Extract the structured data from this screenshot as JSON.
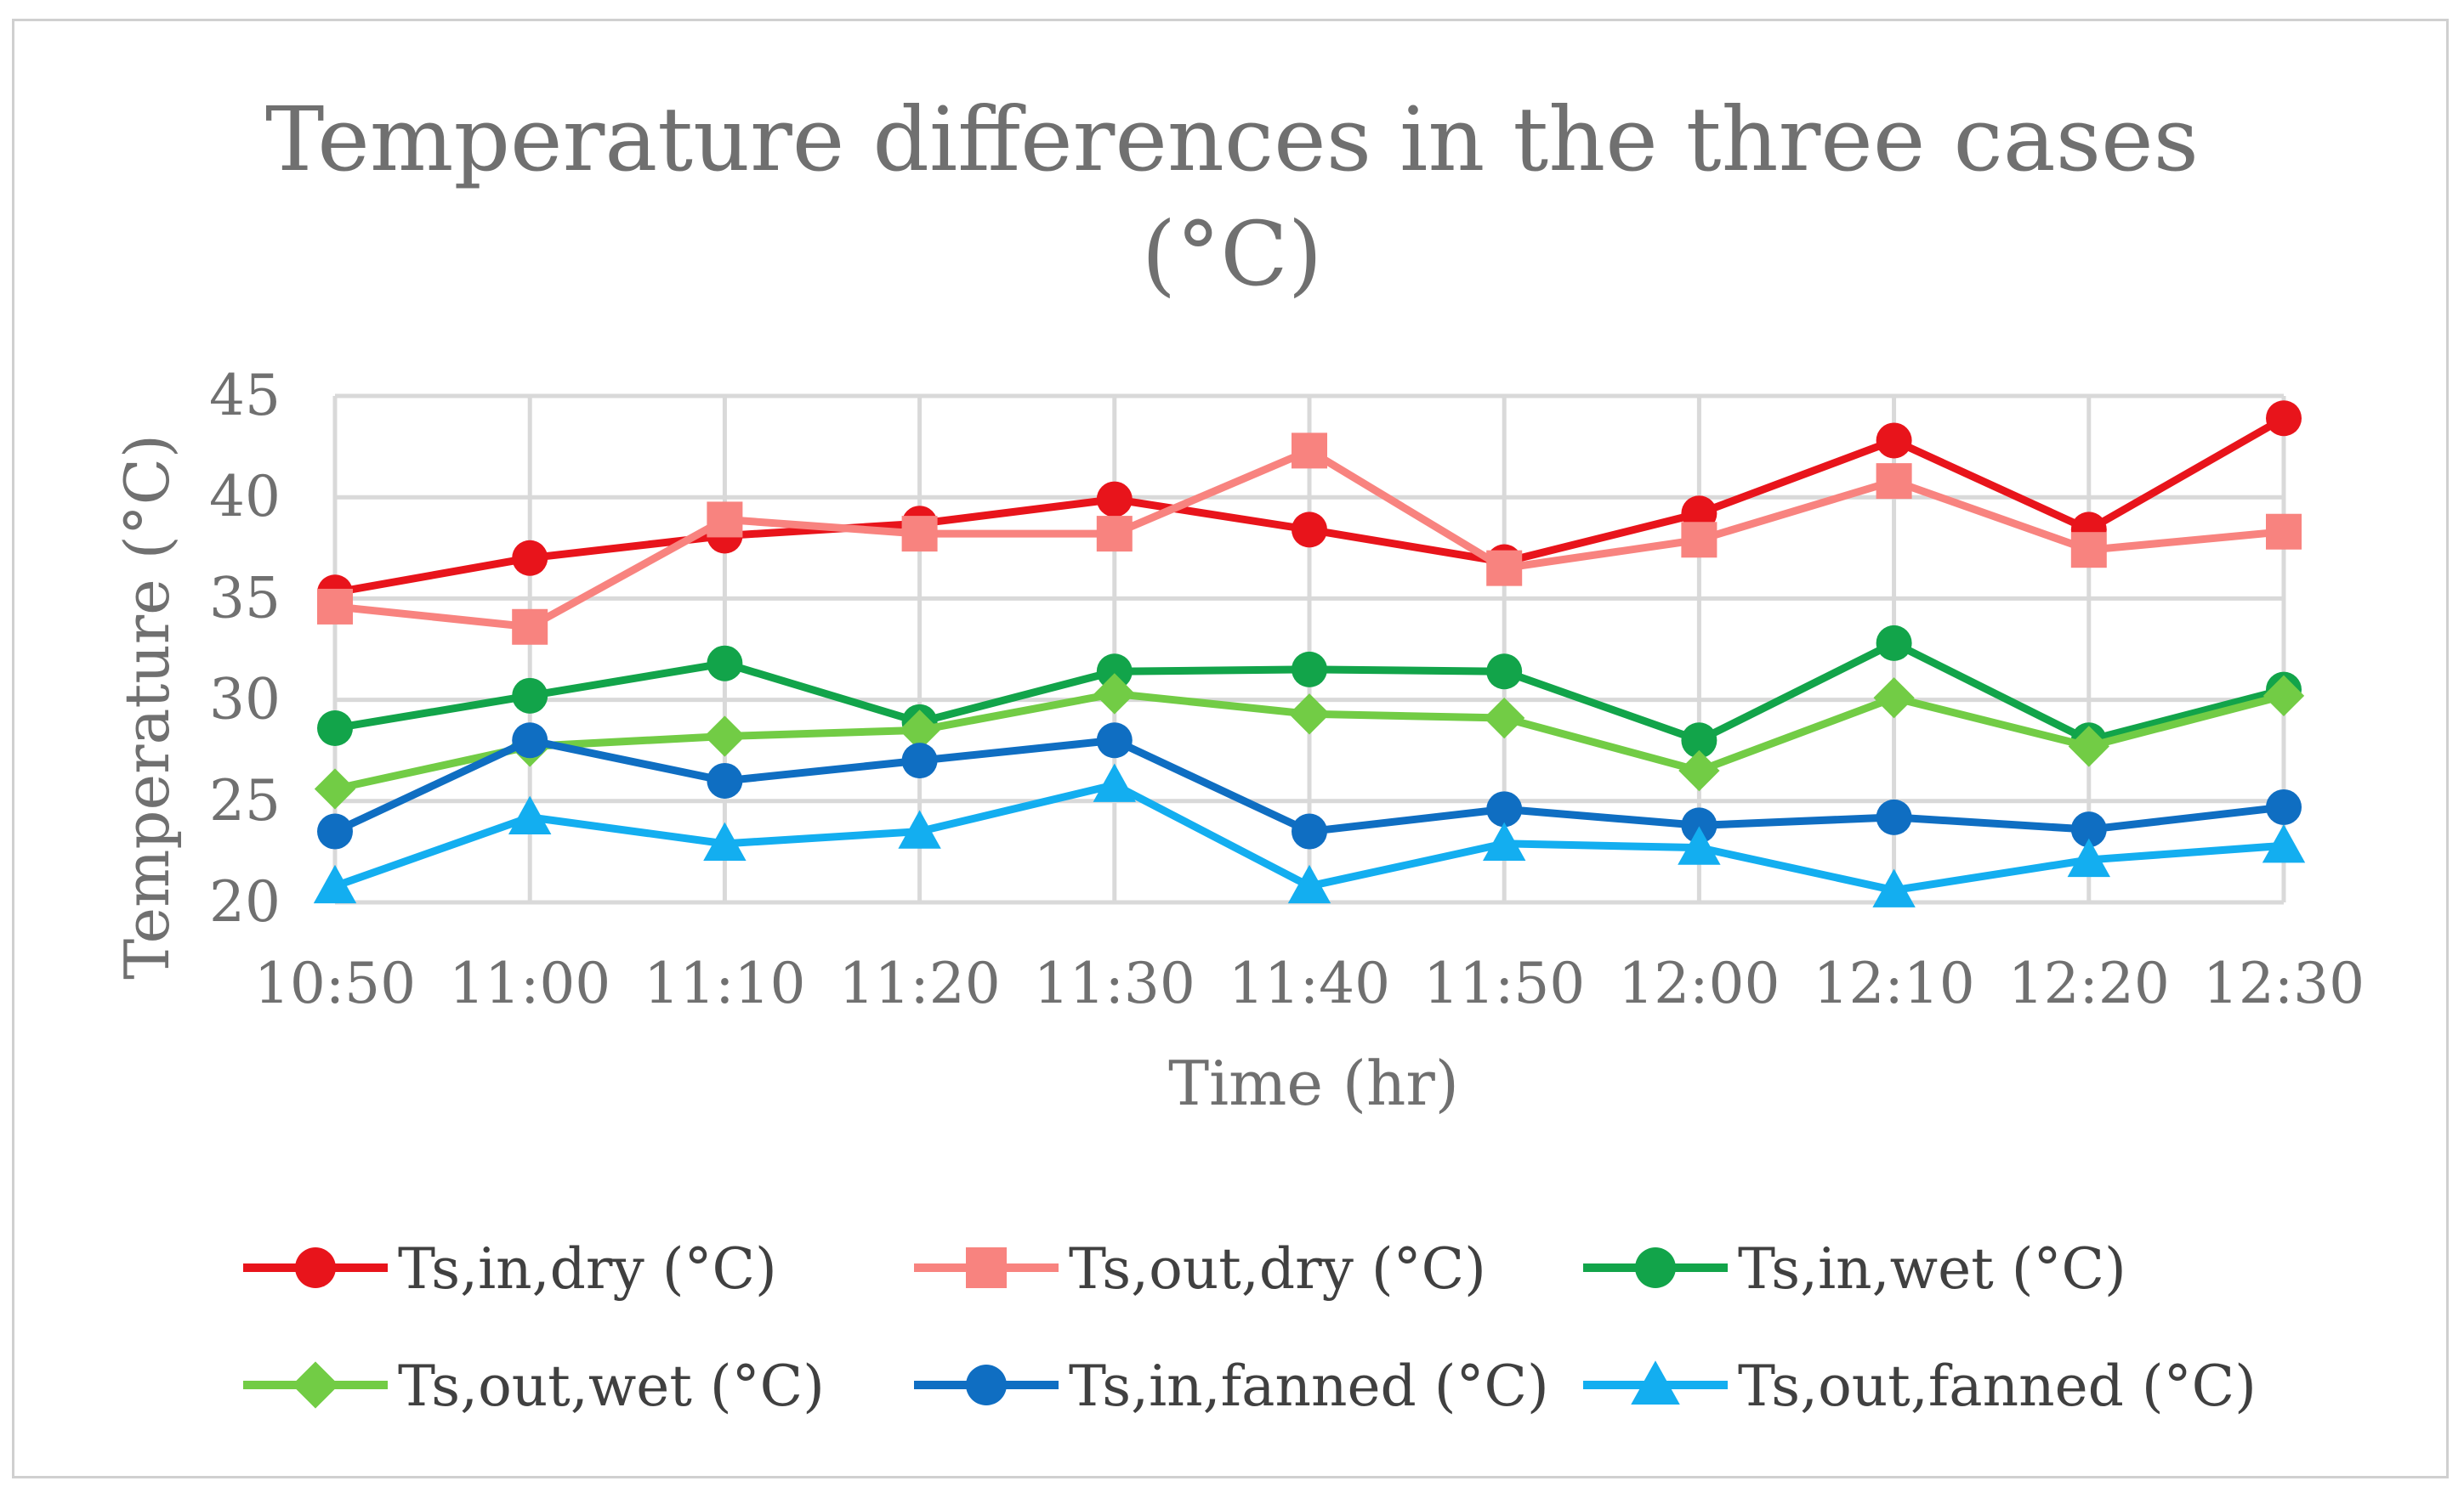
{
  "chart_data": {
    "type": "line",
    "title_line1": "Temperature differences in the three cases",
    "title_line2": "(°C)",
    "xlabel": "Time (hr)",
    "ylabel": "Temperature (°C)",
    "categories": [
      "10:50",
      "11:00",
      "11:10",
      "11:20",
      "11:30",
      "11:40",
      "11:50",
      "12:00",
      "12:10",
      "12:20",
      "12:30"
    ],
    "ylim": [
      20,
      45
    ],
    "yticks": [
      "20",
      "25",
      "30",
      "35",
      "40",
      "45"
    ],
    "grid": true,
    "legend_position": "bottom",
    "series": [
      {
        "name": "Ts,in,dry (°C)",
        "color": "#e8141b",
        "marker": "circle",
        "values": [
          35.3,
          37.0,
          38.1,
          38.7,
          39.9,
          38.4,
          36.8,
          39.2,
          42.8,
          38.4,
          43.9
        ]
      },
      {
        "name": "Ts,out,dry (°C)",
        "color": "#f8837f",
        "marker": "square",
        "values": [
          34.6,
          33.6,
          38.9,
          38.2,
          38.2,
          42.3,
          36.5,
          37.9,
          40.8,
          37.4,
          38.3
        ]
      },
      {
        "name": "Ts,in,wet (°C)",
        "color": "#12a44a",
        "marker": "circle",
        "values": [
          28.6,
          30.2,
          31.8,
          28.9,
          31.4,
          31.5,
          31.4,
          28.0,
          32.8,
          28.0,
          30.5
        ]
      },
      {
        "name": "Ts,out,wet (°C)",
        "color": "#72cc45",
        "marker": "diamond",
        "values": [
          25.6,
          27.7,
          28.2,
          28.5,
          30.3,
          29.3,
          29.1,
          26.5,
          30.1,
          27.7,
          30.2
        ]
      },
      {
        "name": "Ts,in,fanned (°C)",
        "color": "#0f6ec2",
        "marker": "circle",
        "values": [
          23.5,
          28.0,
          26.0,
          27.0,
          28.0,
          23.5,
          24.6,
          23.8,
          24.2,
          23.6,
          24.7
        ]
      },
      {
        "name": "Ts,out,fanned (°C)",
        "color": "#13aef0",
        "marker": "triangle",
        "values": [
          20.8,
          24.2,
          22.9,
          23.5,
          25.8,
          20.8,
          22.9,
          22.7,
          20.6,
          22.1,
          22.8
        ]
      }
    ]
  }
}
